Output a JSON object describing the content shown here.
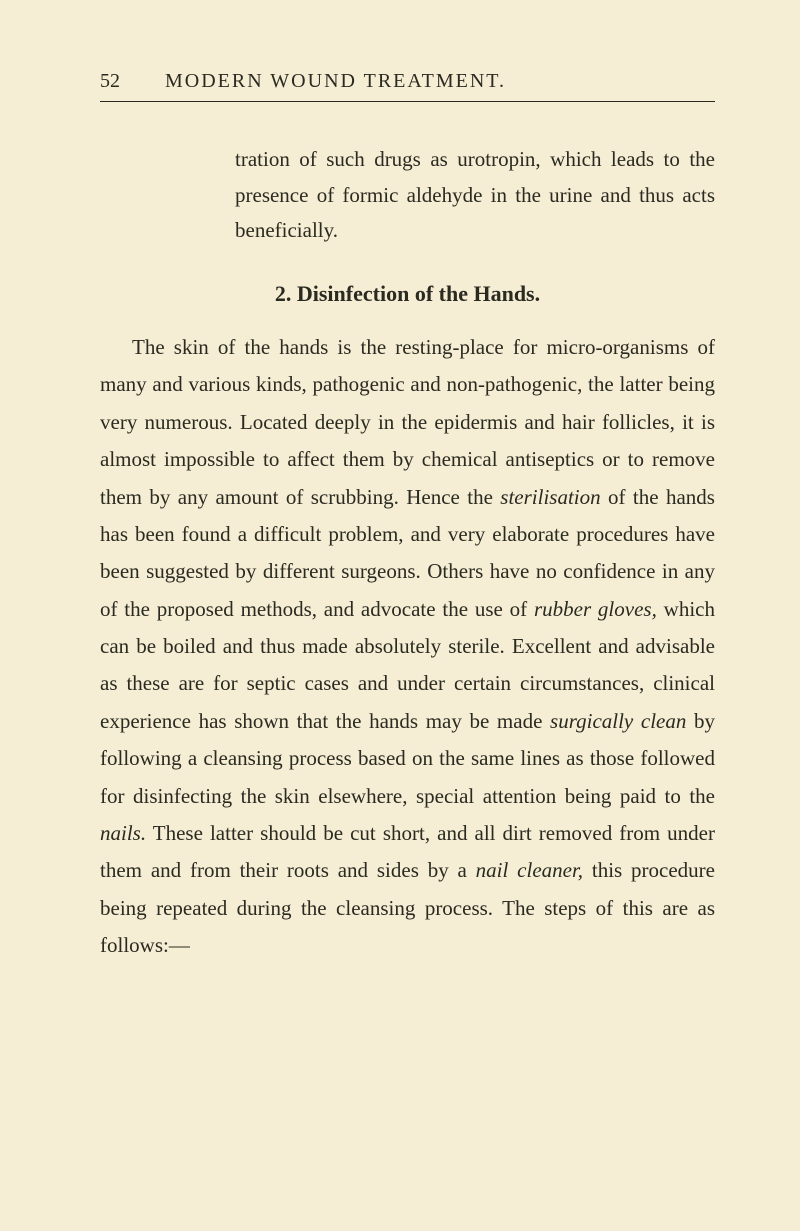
{
  "page": {
    "number": "52",
    "running_title": "MODERN WOUND TREATMENT.",
    "background_color": "#f5edd4",
    "text_color": "#2a2a20",
    "body_fontsize": 21,
    "heading_fontsize": 22,
    "line_height": 1.78
  },
  "continuation": {
    "text_1": "tration of such drugs as urotropin, which leads to the presence of formic aldehyde in the urine and thus acts beneficially."
  },
  "section": {
    "number": "2.",
    "title": "Disinfection of the Hands."
  },
  "body": {
    "p1_a": "The skin of the hands is the resting-place for micro-organisms of many and various kinds, pathogenic and non-pathogenic, the latter being very numerous. Located deeply in the epidermis and hair follicles, it is almost impossible to affect them by chemical antiseptics or to remove them by any amount of scrubbing. Hence the ",
    "p1_italic_1": "sterilisation",
    "p1_b": " of the hands has been found a difficult problem, and very elaborate procedures have been suggested by different surgeons. Others have no confidence in any of the proposed methods, and advocate the use of ",
    "p1_italic_2": "rubber gloves,",
    "p1_c": " which can be boiled and thus made absolutely sterile. Excellent and advisable as these are for septic cases and under certain circumstances, clinical experience has shown that the hands may be made ",
    "p1_italic_3": "surgically clean",
    "p1_d": " by following a cleansing process based on the same lines as those followed for disinfecting the skin elsewhere, special attention being paid to the ",
    "p1_italic_4": "nails.",
    "p1_e": " These latter should be cut short, and all dirt removed from under them and from their roots and sides by a ",
    "p1_italic_5": "nail cleaner,",
    "p1_f": " this procedure being repeated during the cleansing process. The steps of this are as follows:—"
  }
}
